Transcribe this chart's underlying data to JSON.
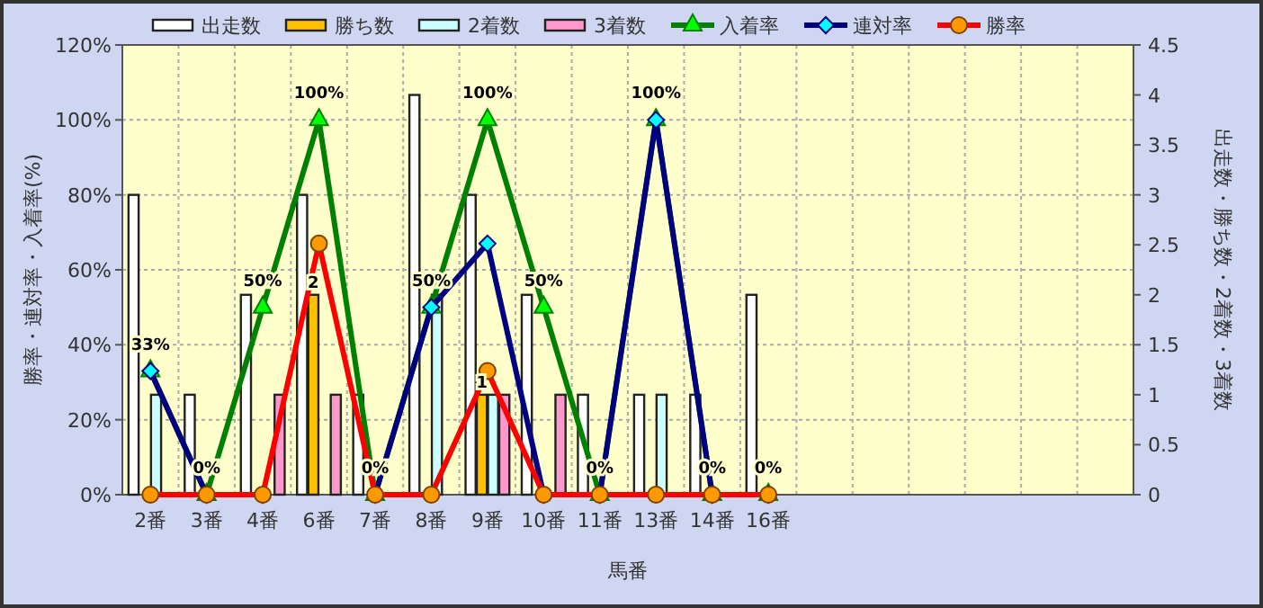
{
  "chart_data": {
    "type": "bar",
    "xlabel": "馬番",
    "ylabel": "勝率・連対率・入着率(%)",
    "y2label": "出走数・勝ち数・2着数・3着数",
    "categories": [
      "2番",
      "3番",
      "4番",
      "6番",
      "7番",
      "8番",
      "9番",
      "10番",
      "11番",
      "13番",
      "14番",
      "16番",
      null,
      null,
      null,
      null,
      null,
      null
    ],
    "ylim": [
      0,
      120
    ],
    "yticks": [
      {
        "value": 0,
        "label": "0%"
      },
      {
        "value": 20,
        "label": "20%"
      },
      {
        "value": 40,
        "label": "40%"
      },
      {
        "value": 60,
        "label": "60%"
      },
      {
        "value": 80,
        "label": "80%"
      },
      {
        "value": 100,
        "label": "100%"
      },
      {
        "value": 120,
        "label": "120%"
      }
    ],
    "y2lim": [
      0,
      4.5
    ],
    "y2ticks": [
      0,
      0.5,
      1,
      1.5,
      2,
      2.5,
      3,
      3.5,
      4,
      4.5
    ],
    "grid": true,
    "legend": "top",
    "series": [
      {
        "name": "出走数",
        "axis": "y2",
        "color": "#ffffff",
        "values": [
          3,
          1,
          2,
          3,
          1,
          4,
          3,
          2,
          1,
          1,
          1,
          2,
          null,
          null,
          null,
          null,
          null,
          null
        ]
      },
      {
        "name": "勝ち数",
        "axis": "y2",
        "color": "#ffc000",
        "values": [
          0,
          0,
          0,
          2,
          0,
          0,
          1,
          0,
          0,
          0,
          0,
          0,
          null,
          null,
          null,
          null,
          null,
          null
        ],
        "value_labels": [
          null,
          null,
          null,
          "2",
          null,
          null,
          "1",
          null,
          null,
          null,
          null,
          null,
          null,
          null,
          null,
          null,
          null,
          null
        ]
      },
      {
        "name": "2着数",
        "axis": "y2",
        "color": "#ccffff",
        "values": [
          1,
          0,
          0,
          0,
          0,
          2,
          1,
          0,
          0,
          1,
          0,
          0,
          null,
          null,
          null,
          null,
          null,
          null
        ]
      },
      {
        "name": "3着数",
        "axis": "y2",
        "color": "#ff99cc",
        "values": [
          0,
          0,
          1,
          1,
          0,
          0,
          1,
          1,
          0,
          0,
          0,
          0,
          null,
          null,
          null,
          null,
          null,
          null
        ]
      },
      {
        "name": "入着率",
        "type": "line",
        "color": "#008000",
        "marker": "triangle",
        "values": [
          33,
          0,
          50,
          100,
          0,
          50,
          100,
          50,
          0,
          100,
          0,
          0,
          null,
          null,
          null,
          null,
          null,
          null
        ],
        "value_labels": [
          "33%",
          "0%",
          "50%",
          "100%",
          "0%",
          "50%",
          "100%",
          "50%",
          "0%",
          "100%",
          "0%",
          "0%",
          null,
          null,
          null,
          null,
          null,
          null
        ]
      },
      {
        "name": "連対率",
        "type": "line",
        "color": "#000080",
        "marker": "diamond",
        "values": [
          33,
          0,
          0,
          null,
          0,
          50,
          67,
          0,
          0,
          100,
          0,
          0,
          null,
          null,
          null,
          null,
          null,
          null
        ]
      },
      {
        "name": "勝率",
        "type": "line",
        "color": "#ff0000",
        "marker": "circle",
        "values": [
          0,
          0,
          0,
          67,
          0,
          0,
          33,
          0,
          0,
          0,
          0,
          0,
          null,
          null,
          null,
          null,
          null,
          null
        ]
      }
    ]
  }
}
